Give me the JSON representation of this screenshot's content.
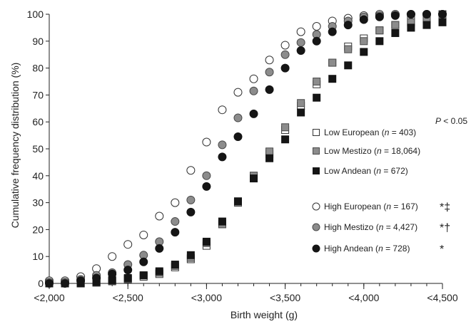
{
  "chart_data": {
    "type": "scatter",
    "xlabel": "Birth weight (g)",
    "ylabel": "Cumulative frequency distribution (%)",
    "xlim": [
      2000,
      4500
    ],
    "ylim": [
      0,
      100
    ],
    "x_ticks": [
      2000,
      2500,
      3000,
      3500,
      4000,
      4500
    ],
    "x_tick_labels": [
      "<2,000",
      "<2,500",
      "<3,000",
      "<3,500",
      "<4,000",
      "<4,500"
    ],
    "y_ticks": [
      0,
      10,
      20,
      30,
      40,
      50,
      60,
      70,
      80,
      90,
      100
    ],
    "y_tick_labels": [
      "0",
      "10",
      "20",
      "30",
      "40",
      "50",
      "60",
      "70",
      "80",
      "90",
      "100"
    ],
    "x": [
      2000,
      2100,
      2200,
      2300,
      2400,
      2500,
      2600,
      2700,
      2800,
      2900,
      3000,
      3100,
      3200,
      3300,
      3400,
      3500,
      3600,
      3700,
      3800,
      3900,
      4000,
      4100,
      4200,
      4300,
      4400,
      4500
    ],
    "annotation": "P < 0.05",
    "legend_position": "right",
    "grid": false,
    "series": [
      {
        "name": "Low European (n = 403)",
        "marker": "square-open",
        "values": [
          0,
          0,
          0,
          0.3,
          0.8,
          1.5,
          2.5,
          3.5,
          6,
          9,
          14,
          22,
          30,
          40,
          48,
          57,
          66,
          74,
          82,
          88,
          91,
          94,
          96,
          98,
          99,
          100
        ]
      },
      {
        "name": "Low Mestizo (n = 18,064)",
        "marker": "square-gray",
        "values": [
          0,
          0,
          0,
          0.3,
          1,
          1.7,
          3,
          4,
          6.5,
          9.5,
          15,
          22,
          30,
          40,
          49,
          58,
          67,
          75,
          82,
          87,
          90,
          94,
          96,
          97,
          98,
          98
        ]
      },
      {
        "name": "Low Andean (n = 672)",
        "marker": "square-filled",
        "values": [
          0,
          0,
          0,
          0.5,
          1.2,
          2,
          3,
          4.5,
          7,
          10.5,
          15.5,
          23,
          30.5,
          39,
          46.5,
          53.5,
          63.5,
          69,
          76,
          81,
          86,
          90,
          93,
          95,
          96,
          97
        ]
      },
      {
        "name": "High European (n = 167)",
        "marker": "circle-open",
        "significance": "*‡",
        "values": [
          1,
          1,
          2.5,
          5.5,
          10,
          14.5,
          18,
          25,
          30,
          42,
          52.5,
          64.5,
          71,
          76,
          83,
          88.5,
          93.5,
          95.5,
          97.5,
          98.5,
          99.5,
          100,
          100,
          100,
          100,
          100
        ]
      },
      {
        "name": "High Mestizo (n = 4,427)",
        "marker": "circle-gray",
        "significance": "*†",
        "values": [
          0.5,
          0.5,
          1.5,
          3,
          4,
          7,
          10.5,
          15.5,
          23,
          31,
          40,
          51.5,
          61.5,
          71.5,
          78.5,
          85,
          89.5,
          92.5,
          95.5,
          97.5,
          99,
          99.5,
          100,
          100,
          100,
          100
        ]
      },
      {
        "name": "High Andean (n = 728)",
        "marker": "circle-filled",
        "significance": "*",
        "values": [
          0,
          0,
          1,
          2,
          3.5,
          5,
          8,
          13,
          19,
          26.5,
          36,
          47,
          54.5,
          63,
          72,
          80,
          86.5,
          90,
          93.5,
          96,
          98,
          99,
          99.5,
          100,
          100,
          100
        ]
      }
    ]
  }
}
